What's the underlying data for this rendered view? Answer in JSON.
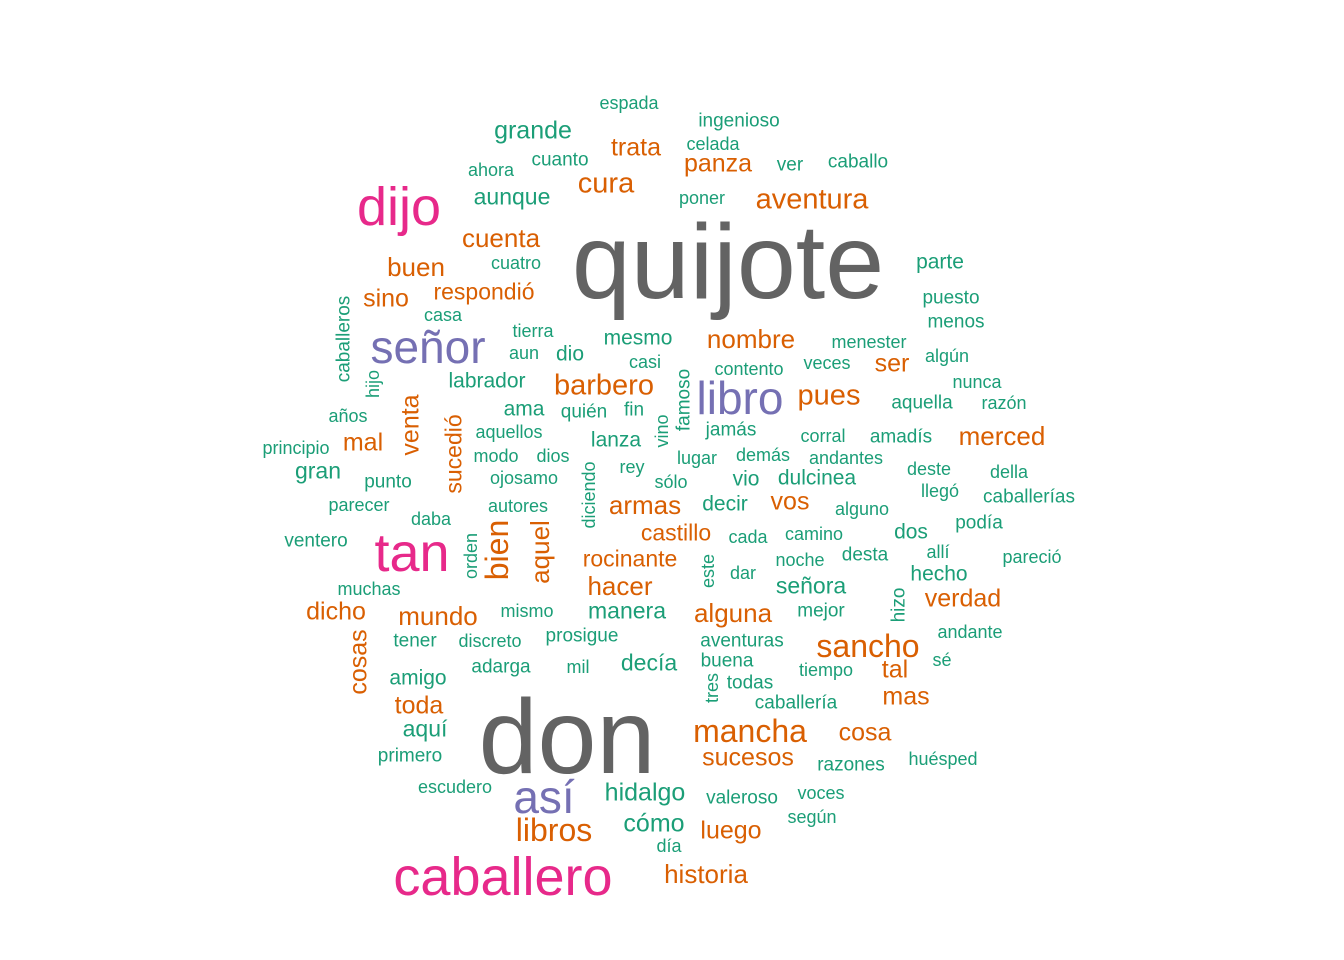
{
  "colors": {
    "c1": "#636363",
    "c2": "#e7298a",
    "c3": "#7570b3",
    "c4": "#d95f02",
    "c5": "#1b9e77"
  },
  "words": [
    "quijote",
    "don",
    "caballero",
    "dijo",
    "tan",
    "señor",
    "libro",
    "así",
    "mancha",
    "libros",
    "sancho",
    "barbero",
    "cura",
    "aventura",
    "pues",
    "merced",
    "historia",
    "armas",
    "nombre",
    "cuenta",
    "buen",
    "hacer",
    "mundo",
    "alguna",
    "bien",
    "aquel",
    "rocinante",
    "castillo",
    "venta",
    "sucedió",
    "sino",
    "respondió",
    "mal",
    "dicho",
    "cosas",
    "toda",
    "luego",
    "sucesos",
    "cosa",
    "trata",
    "panza",
    "verdad",
    "ser",
    "tal",
    "mas",
    "vos",
    "grande",
    "aunque",
    "cómo",
    "hidalgo",
    "decía",
    "manera",
    "prosigue",
    "amigo",
    "aquí",
    "primero",
    "gran",
    "labrador",
    "mesmo",
    "dio",
    "ama",
    "quién",
    "fin",
    "lanza",
    "señora",
    "dulcinea",
    "vio",
    "decir",
    "dos",
    "hecho",
    "podía",
    "caballerías",
    "parte",
    "puesto",
    "menos",
    "ingenioso",
    "caballo",
    "ver",
    "espada",
    "cuanto",
    "ahora",
    "celada",
    "poner",
    "cuatro",
    "casa",
    "tierra",
    "aun",
    "casi",
    "contento",
    "menester",
    "veces",
    "algún",
    "nunca",
    "aquella",
    "razón",
    "amadís",
    "corral",
    "jamás",
    "andantes",
    "lugar",
    "demás",
    "deste",
    "della",
    "llegó",
    "alguno",
    "camino",
    "cada",
    "noche",
    "desta",
    "allí",
    "pareció",
    "mejor",
    "andante",
    "sé",
    "tiempo",
    "buena",
    "todas",
    "caballería",
    "aventuras",
    "huésped",
    "razones",
    "voces",
    "valeroso",
    "según",
    "día",
    "escudero",
    "mil",
    "adarga",
    "discreto",
    "tener",
    "mismo",
    "muchas",
    "ventero",
    "daba",
    "parecer",
    "punto",
    "principio",
    "años",
    "aquellos",
    "modo",
    "dios",
    "rey",
    "sólo",
    "ojosamo",
    "autores",
    "diciendo",
    "orden",
    "este",
    "dar",
    "tres",
    "famoso",
    "vino",
    "caballeros",
    "hijo",
    "hizo"
  ]
}
